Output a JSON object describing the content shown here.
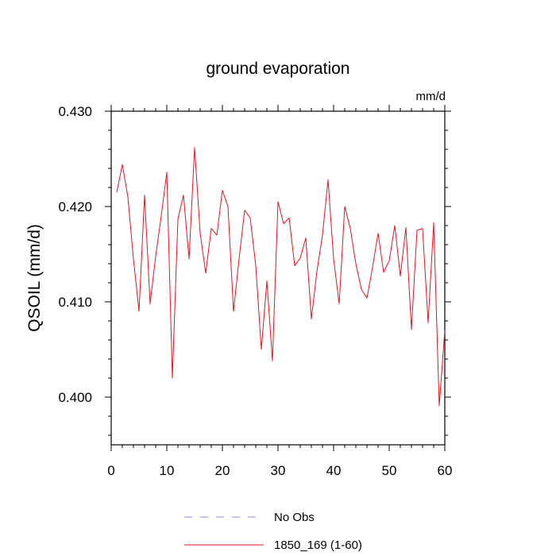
{
  "chart_data": {
    "type": "line",
    "title": "ground evaporation",
    "units_label": "mm/d",
    "xlabel": "",
    "ylabel": "QSOIL  (mm/d)",
    "xlim": [
      0,
      60
    ],
    "ylim": [
      0.395,
      0.43
    ],
    "x_ticks": [
      0,
      10,
      20,
      30,
      40,
      50,
      60
    ],
    "x_tick_labels": [
      "0",
      "10",
      "20",
      "30",
      "40",
      "50",
      "60"
    ],
    "y_ticks": [
      0.4,
      0.41,
      0.42,
      0.43
    ],
    "y_tick_labels": [
      "0.400",
      "0.410",
      "0.420",
      "0.430"
    ],
    "grid": false,
    "legend_position": "bottom",
    "legend": [
      {
        "name": "No Obs",
        "color": "#8888ee",
        "style": "dashed"
      },
      {
        "name": "1850_169 (1-60)",
        "color": "#e8141c",
        "style": "solid"
      }
    ],
    "series": [
      {
        "name": "1850_169 (1-60)",
        "color": "#e8141c",
        "x": [
          1,
          2,
          3,
          4,
          5,
          6,
          7,
          8,
          9,
          10,
          11,
          12,
          13,
          14,
          15,
          16,
          17,
          18,
          19,
          20,
          21,
          22,
          23,
          24,
          25,
          26,
          27,
          28,
          29,
          30,
          31,
          32,
          33,
          34,
          35,
          36,
          37,
          38,
          39,
          40,
          41,
          42,
          43,
          44,
          45,
          46,
          47,
          48,
          49,
          50,
          51,
          52,
          53,
          54,
          55,
          56,
          57,
          58,
          59,
          60
        ],
        "values": [
          0.4215,
          0.4244,
          0.421,
          0.4145,
          0.409,
          0.4212,
          0.4098,
          0.4148,
          0.419,
          0.4236,
          0.402,
          0.4187,
          0.4212,
          0.4145,
          0.4262,
          0.4172,
          0.413,
          0.4177,
          0.417,
          0.4217,
          0.42,
          0.409,
          0.4145,
          0.4196,
          0.4188,
          0.4138,
          0.405,
          0.4122,
          0.4038,
          0.4205,
          0.4182,
          0.4188,
          0.4138,
          0.4146,
          0.4167,
          0.4082,
          0.4132,
          0.417,
          0.4228,
          0.4145,
          0.4098,
          0.42,
          0.4177,
          0.414,
          0.4113,
          0.4104,
          0.4136,
          0.4172,
          0.4131,
          0.4143,
          0.418,
          0.4127,
          0.4178,
          0.4071,
          0.4175,
          0.4177,
          0.4078,
          0.4183,
          0.3991,
          0.407
        ]
      }
    ]
  }
}
